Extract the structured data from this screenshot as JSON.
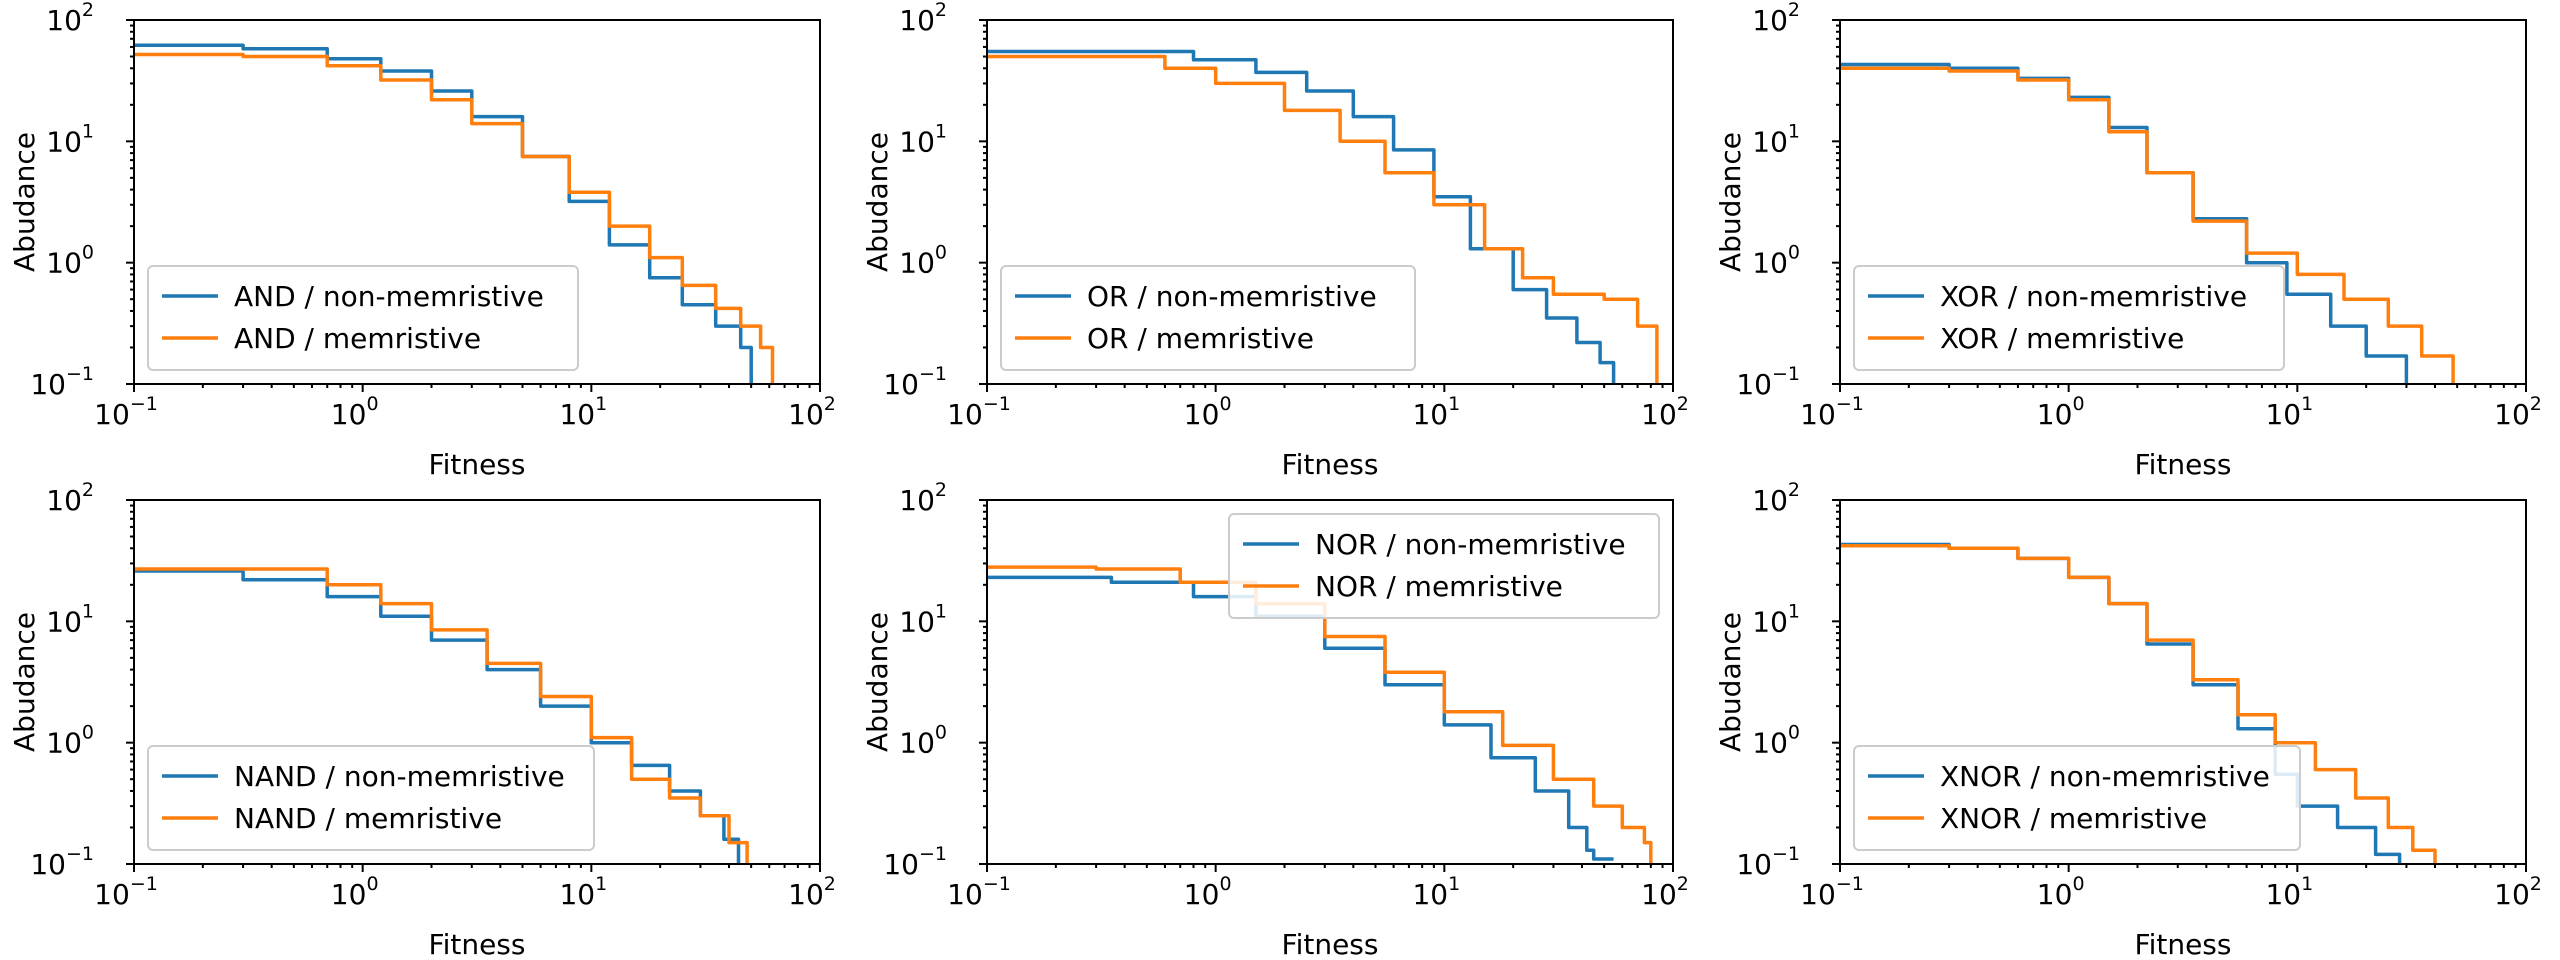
{
  "colors": {
    "non_memristive": "#1f77b4",
    "memristive": "#ff7f0e"
  },
  "chart_data": [
    {
      "type": "line",
      "scale": "log-log",
      "xlabel": "Fitness",
      "ylabel": "Abudance",
      "xlim": [
        0.1,
        100
      ],
      "ylim": [
        0.1,
        100
      ],
      "xticks": [
        {
          "base": "10",
          "exp": "−1"
        },
        {
          "base": "10",
          "exp": "0"
        },
        {
          "base": "10",
          "exp": "1"
        },
        {
          "base": "10",
          "exp": "2"
        }
      ],
      "yticks": [
        {
          "base": "10",
          "exp": "−1"
        },
        {
          "base": "10",
          "exp": "0"
        },
        {
          "base": "10",
          "exp": "1"
        },
        {
          "base": "10",
          "exp": "2"
        }
      ],
      "legend_loc": "lower-left",
      "series": [
        {
          "name": "AND / non-memristive",
          "color": "#1f77b4",
          "x": [
            0.1,
            0.3,
            0.7,
            1.2,
            2.0,
            3.0,
            5.0,
            8.0,
            12.0,
            18.0,
            25.0,
            35.0,
            45.0,
            50.0,
            50.0
          ],
          "y": [
            62,
            58,
            48,
            38,
            26,
            16,
            7.5,
            3.2,
            1.4,
            0.75,
            0.45,
            0.3,
            0.2,
            0.15,
            0.1
          ]
        },
        {
          "name": "AND / memristive",
          "color": "#ff7f0e",
          "x": [
            0.1,
            0.3,
            0.7,
            1.2,
            2.0,
            3.0,
            5.0,
            8.0,
            12.0,
            18.0,
            25.0,
            35.0,
            45.0,
            55.0,
            62.0,
            62.0
          ],
          "y": [
            52,
            50,
            42,
            32,
            22,
            14,
            7.5,
            3.8,
            2.0,
            1.1,
            0.65,
            0.42,
            0.3,
            0.2,
            0.15,
            0.1
          ]
        }
      ]
    },
    {
      "type": "line",
      "scale": "log-log",
      "xlabel": "Fitness",
      "ylabel": "Abudance",
      "xlim": [
        0.1,
        100
      ],
      "ylim": [
        0.1,
        100
      ],
      "xticks": [
        {
          "base": "10",
          "exp": "−1"
        },
        {
          "base": "10",
          "exp": "0"
        },
        {
          "base": "10",
          "exp": "1"
        },
        {
          "base": "10",
          "exp": "2"
        }
      ],
      "yticks": [
        {
          "base": "10",
          "exp": "−1"
        },
        {
          "base": "10",
          "exp": "0"
        },
        {
          "base": "10",
          "exp": "1"
        },
        {
          "base": "10",
          "exp": "2"
        }
      ],
      "legend_loc": "lower-left",
      "series": [
        {
          "name": "OR / non-memristive",
          "color": "#1f77b4",
          "x": [
            0.1,
            0.35,
            0.8,
            1.5,
            2.5,
            4.0,
            6.0,
            9.0,
            13.0,
            20.0,
            28.0,
            38.0,
            48.0,
            55.0,
            55.0
          ],
          "y": [
            55,
            55,
            47,
            37,
            26,
            16,
            8.5,
            3.5,
            1.3,
            0.6,
            0.35,
            0.22,
            0.15,
            0.12,
            0.1
          ]
        },
        {
          "name": "OR / memristive",
          "color": "#ff7f0e",
          "x": [
            0.1,
            0.3,
            0.6,
            1.0,
            2.0,
            3.5,
            5.5,
            9.0,
            15.0,
            22.0,
            30.0,
            50.0,
            70.0,
            85.0,
            85.0
          ],
          "y": [
            50,
            50,
            40,
            30,
            18,
            10,
            5.5,
            3.0,
            1.3,
            0.75,
            0.55,
            0.5,
            0.3,
            0.2,
            0.1
          ]
        }
      ]
    },
    {
      "type": "line",
      "scale": "log-log",
      "xlabel": "Fitness",
      "ylabel": "Abudance",
      "xlim": [
        0.1,
        100
      ],
      "ylim": [
        0.1,
        100
      ],
      "xticks": [
        {
          "base": "10",
          "exp": "−1"
        },
        {
          "base": "10",
          "exp": "0"
        },
        {
          "base": "10",
          "exp": "1"
        },
        {
          "base": "10",
          "exp": "2"
        }
      ],
      "yticks": [
        {
          "base": "10",
          "exp": "−1"
        },
        {
          "base": "10",
          "exp": "0"
        },
        {
          "base": "10",
          "exp": "1"
        },
        {
          "base": "10",
          "exp": "2"
        }
      ],
      "legend_loc": "lower-left",
      "series": [
        {
          "name": "XOR / non-memristive",
          "color": "#1f77b4",
          "x": [
            0.1,
            0.3,
            0.6,
            1.0,
            1.5,
            2.2,
            3.5,
            6.0,
            9.0,
            14.0,
            20.0,
            30.0,
            30.0
          ],
          "y": [
            43,
            40,
            33,
            23,
            13,
            5.5,
            2.3,
            1.0,
            0.55,
            0.3,
            0.17,
            0.11,
            0.1
          ]
        },
        {
          "name": "XOR / memristive",
          "color": "#ff7f0e",
          "x": [
            0.1,
            0.3,
            0.6,
            1.0,
            1.5,
            2.2,
            3.5,
            6.0,
            10.0,
            16.0,
            25.0,
            35.0,
            48.0,
            48.0
          ],
          "y": [
            40,
            38,
            32,
            22,
            12,
            5.5,
            2.2,
            1.2,
            0.8,
            0.5,
            0.3,
            0.17,
            0.11,
            0.1
          ]
        }
      ]
    },
    {
      "type": "line",
      "scale": "log-log",
      "xlabel": "Fitness",
      "ylabel": "Abudance",
      "xlim": [
        0.1,
        100
      ],
      "ylim": [
        0.1,
        100
      ],
      "xticks": [
        {
          "base": "10",
          "exp": "−1"
        },
        {
          "base": "10",
          "exp": "0"
        },
        {
          "base": "10",
          "exp": "1"
        },
        {
          "base": "10",
          "exp": "2"
        }
      ],
      "yticks": [
        {
          "base": "10",
          "exp": "−1"
        },
        {
          "base": "10",
          "exp": "0"
        },
        {
          "base": "10",
          "exp": "1"
        },
        {
          "base": "10",
          "exp": "2"
        }
      ],
      "legend_loc": "lower-left",
      "series": [
        {
          "name": "NAND / non-memristive",
          "color": "#1f77b4",
          "x": [
            0.1,
            0.3,
            0.7,
            1.2,
            2.0,
            3.5,
            6.0,
            10.0,
            15.0,
            22.0,
            30.0,
            38.0,
            44.0,
            44.0
          ],
          "y": [
            26,
            22,
            16,
            11,
            7.0,
            4.0,
            2.0,
            1.0,
            0.65,
            0.4,
            0.25,
            0.16,
            0.12,
            0.1
          ]
        },
        {
          "name": "NAND / memristive",
          "color": "#ff7f0e",
          "x": [
            0.1,
            0.3,
            0.7,
            1.2,
            2.0,
            3.5,
            6.0,
            10.0,
            15.0,
            22.0,
            30.0,
            40.0,
            48.0,
            48.0
          ],
          "y": [
            27,
            27,
            20,
            14,
            8.5,
            4.5,
            2.4,
            1.1,
            0.5,
            0.35,
            0.25,
            0.15,
            0.12,
            0.1
          ]
        }
      ]
    },
    {
      "type": "line",
      "scale": "log-log",
      "xlabel": "Fitness",
      "ylabel": "Abudance",
      "xlim": [
        0.1,
        100
      ],
      "ylim": [
        0.1,
        100
      ],
      "xticks": [
        {
          "base": "10",
          "exp": "−1"
        },
        {
          "base": "10",
          "exp": "0"
        },
        {
          "base": "10",
          "exp": "1"
        },
        {
          "base": "10",
          "exp": "2"
        }
      ],
      "yticks": [
        {
          "base": "10",
          "exp": "−1"
        },
        {
          "base": "10",
          "exp": "0"
        },
        {
          "base": "10",
          "exp": "1"
        },
        {
          "base": "10",
          "exp": "2"
        }
      ],
      "legend_loc": "upper-right",
      "series": [
        {
          "name": "NOR / non-memristive",
          "color": "#1f77b4",
          "x": [
            0.1,
            0.35,
            0.8,
            1.5,
            3.0,
            5.5,
            10.0,
            16.0,
            25.0,
            35.0,
            42.0,
            45.0,
            55.0
          ],
          "y": [
            23,
            21,
            16,
            11,
            6.0,
            3.0,
            1.4,
            0.75,
            0.4,
            0.2,
            0.13,
            0.11,
            0.11
          ]
        },
        {
          "name": "NOR / memristive",
          "color": "#ff7f0e",
          "x": [
            0.1,
            0.3,
            0.7,
            1.5,
            3.0,
            5.5,
            10.0,
            18.0,
            30.0,
            45.0,
            60.0,
            75.0,
            80.0,
            80.0
          ],
          "y": [
            28,
            27,
            21,
            14,
            7.5,
            3.8,
            1.8,
            0.95,
            0.5,
            0.3,
            0.2,
            0.15,
            0.11,
            0.1
          ]
        }
      ]
    },
    {
      "type": "line",
      "scale": "log-log",
      "xlabel": "Fitness",
      "ylabel": "Abudance",
      "xlim": [
        0.1,
        100
      ],
      "ylim": [
        0.1,
        100
      ],
      "xticks": [
        {
          "base": "10",
          "exp": "−1"
        },
        {
          "base": "10",
          "exp": "0"
        },
        {
          "base": "10",
          "exp": "1"
        },
        {
          "base": "10",
          "exp": "2"
        }
      ],
      "yticks": [
        {
          "base": "10",
          "exp": "−1"
        },
        {
          "base": "10",
          "exp": "0"
        },
        {
          "base": "10",
          "exp": "1"
        },
        {
          "base": "10",
          "exp": "2"
        }
      ],
      "legend_loc": "lower-left",
      "series": [
        {
          "name": "XNOR / non-memristive",
          "color": "#1f77b4",
          "x": [
            0.1,
            0.3,
            0.6,
            1.0,
            1.5,
            2.2,
            3.5,
            5.5,
            8.0,
            10.0,
            15.0,
            22.0,
            28.0,
            28.0
          ],
          "y": [
            43,
            40,
            33,
            23,
            14,
            6.5,
            3.0,
            1.3,
            0.55,
            0.3,
            0.2,
            0.12,
            0.11,
            0.1
          ]
        },
        {
          "name": "XNOR / memristive",
          "color": "#ff7f0e",
          "x": [
            0.1,
            0.3,
            0.6,
            1.0,
            1.5,
            2.2,
            3.5,
            5.5,
            8.0,
            12.0,
            18.0,
            25.0,
            32.0,
            40.0,
            40.0
          ],
          "y": [
            42,
            40,
            33,
            23,
            14,
            7.0,
            3.3,
            1.7,
            1.0,
            0.6,
            0.35,
            0.2,
            0.13,
            0.12,
            0.1
          ]
        }
      ]
    }
  ]
}
